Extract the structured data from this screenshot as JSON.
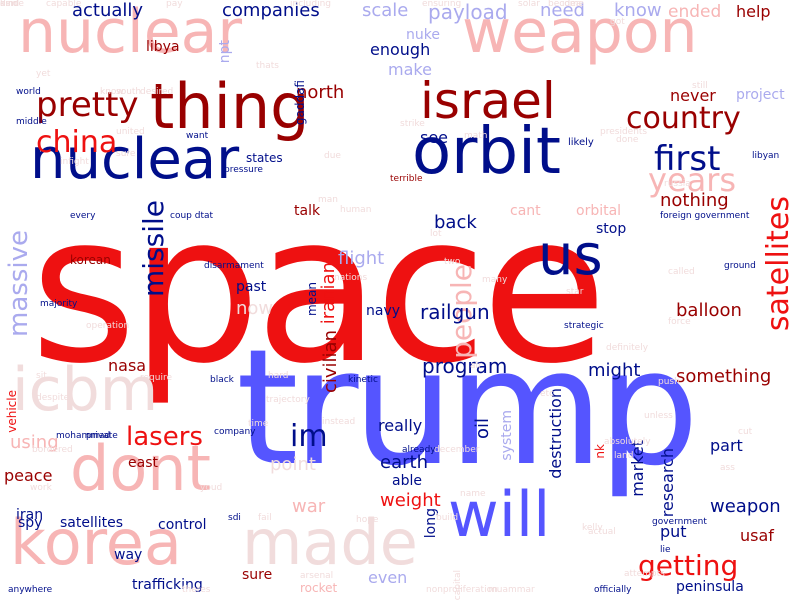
{
  "colors": {
    "red": "#ee1111",
    "dark_red": "#990000",
    "pink": "#f7b5b5",
    "navy": "#000e8a",
    "blue": "#5555ff",
    "light_blue": "#aaaaee",
    "faint": "#f1dcdc"
  },
  "words": [
    {
      "text": "space",
      "color": "red",
      "size": 205
    },
    {
      "text": "trump",
      "color": "blue",
      "size": 160
    },
    {
      "text": "nuclear",
      "color": "pink",
      "size": 60
    },
    {
      "text": "weapon",
      "color": "pink",
      "size": 60
    },
    {
      "text": "orbit",
      "color": "navy",
      "size": 64
    },
    {
      "text": "thing",
      "color": "dark_red",
      "size": 62
    },
    {
      "text": "nuclear",
      "color": "navy",
      "size": 56
    },
    {
      "text": "israel",
      "color": "dark_red",
      "size": 50
    },
    {
      "text": "us",
      "color": "navy",
      "size": 56
    },
    {
      "text": "korea",
      "color": "pink",
      "size": 62
    },
    {
      "text": "dont",
      "color": "pink",
      "size": 62
    },
    {
      "text": "made",
      "color": "faint",
      "size": 62
    },
    {
      "text": "will",
      "color": "blue",
      "size": 62
    },
    {
      "text": "icbm",
      "color": "faint",
      "size": 60
    },
    {
      "text": "pretty",
      "color": "dark_red",
      "size": 34
    },
    {
      "text": "china",
      "color": "red",
      "size": 30
    },
    {
      "text": "country",
      "color": "dark_red",
      "size": 30
    },
    {
      "text": "first",
      "color": "navy",
      "size": 34
    },
    {
      "text": "years",
      "color": "pink",
      "size": 32
    },
    {
      "text": "satellites",
      "color": "red",
      "size": 30
    },
    {
      "text": "massive",
      "color": "light_blue",
      "size": 26
    },
    {
      "text": "missile",
      "color": "navy",
      "size": 28
    },
    {
      "text": "people",
      "color": "pink",
      "size": 28
    },
    {
      "text": "lasers",
      "color": "red",
      "size": 26
    },
    {
      "text": "im",
      "color": "navy",
      "size": 30
    },
    {
      "text": "getting",
      "color": "red",
      "size": 28
    },
    {
      "text": "actually",
      "color": "navy",
      "size": 18
    },
    {
      "text": "companies",
      "color": "navy",
      "size": 18
    },
    {
      "text": "scale",
      "color": "light_blue",
      "size": 18
    },
    {
      "text": "payload",
      "color": "light_blue",
      "size": 20
    },
    {
      "text": "need",
      "color": "light_blue",
      "size": 18
    },
    {
      "text": "know",
      "color": "light_blue",
      "size": 18
    },
    {
      "text": "ended",
      "color": "pink",
      "size": 17
    },
    {
      "text": "help",
      "color": "dark_red",
      "size": 16
    },
    {
      "text": "libya",
      "color": "dark_red",
      "size": 14
    },
    {
      "text": "npt",
      "color": "light_blue",
      "size": 14
    },
    {
      "text": "nuke",
      "color": "light_blue",
      "size": 14
    },
    {
      "text": "never",
      "color": "dark_red",
      "size": 16
    },
    {
      "text": "project",
      "color": "light_blue",
      "size": 14
    },
    {
      "text": "enough",
      "color": "navy",
      "size": 16
    },
    {
      "text": "make",
      "color": "light_blue",
      "size": 16
    },
    {
      "text": "north",
      "color": "dark_red",
      "size": 18
    },
    {
      "text": "gaddafi",
      "color": "navy",
      "size": 12
    },
    {
      "text": "see",
      "color": "navy",
      "size": 16
    },
    {
      "text": "states",
      "color": "navy",
      "size": 12
    },
    {
      "text": "nothing",
      "color": "dark_red",
      "size": 18
    },
    {
      "text": "orbital",
      "color": "pink",
      "size": 14
    },
    {
      "text": "talk",
      "color": "dark_red",
      "size": 14
    },
    {
      "text": "back",
      "color": "navy",
      "size": 18
    },
    {
      "text": "cant",
      "color": "pink",
      "size": 14
    },
    {
      "text": "stop",
      "color": "navy",
      "size": 14
    },
    {
      "text": "flight",
      "color": "light_blue",
      "size": 18
    },
    {
      "text": "mean",
      "color": "navy",
      "size": 12
    },
    {
      "text": "iranian",
      "color": "red",
      "size": 18
    },
    {
      "text": "railgun",
      "color": "navy",
      "size": 20
    },
    {
      "text": "balloon",
      "color": "dark_red",
      "size": 18
    },
    {
      "text": "past",
      "color": "navy",
      "size": 14
    },
    {
      "text": "now",
      "color": "faint",
      "size": 18
    },
    {
      "text": "navy",
      "color": "navy",
      "size": 14
    },
    {
      "text": "nasa",
      "color": "dark_red",
      "size": 16
    },
    {
      "text": "civilian",
      "color": "dark_red",
      "size": 18
    },
    {
      "text": "program",
      "color": "navy",
      "size": 20
    },
    {
      "text": "might",
      "color": "navy",
      "size": 18
    },
    {
      "text": "something",
      "color": "dark_red",
      "size": 18
    },
    {
      "text": "korean",
      "color": "dark_red",
      "size": 12
    },
    {
      "text": "vehicle",
      "color": "red",
      "size": 12
    },
    {
      "text": "using",
      "color": "pink",
      "size": 18
    },
    {
      "text": "east",
      "color": "dark_red",
      "size": 14
    },
    {
      "text": "point",
      "color": "faint",
      "size": 18
    },
    {
      "text": "really",
      "color": "navy",
      "size": 16
    },
    {
      "text": "oil",
      "color": "navy",
      "size": 18
    },
    {
      "text": "earth",
      "color": "navy",
      "size": 18
    },
    {
      "text": "system",
      "color": "light_blue",
      "size": 14
    },
    {
      "text": "destruction",
      "color": "navy",
      "size": 16
    },
    {
      "text": "able",
      "color": "navy",
      "size": 14
    },
    {
      "text": "weight",
      "color": "red",
      "size": 18
    },
    {
      "text": "war",
      "color": "pink",
      "size": 18
    },
    {
      "text": "nk",
      "color": "red",
      "size": 12
    },
    {
      "text": "market",
      "color": "navy",
      "size": 16
    },
    {
      "text": "research",
      "color": "navy",
      "size": 16
    },
    {
      "text": "part",
      "color": "navy",
      "size": 16
    },
    {
      "text": "weapon",
      "color": "navy",
      "size": 18
    },
    {
      "text": "put",
      "color": "navy",
      "size": 16
    },
    {
      "text": "usaf",
      "color": "dark_red",
      "size": 16
    },
    {
      "text": "peace",
      "color": "dark_red",
      "size": 16
    },
    {
      "text": "iran",
      "color": "navy",
      "size": 14
    },
    {
      "text": "spy",
      "color": "navy",
      "size": 14
    },
    {
      "text": "satellites",
      "color": "navy",
      "size": 14
    },
    {
      "text": "control",
      "color": "navy",
      "size": 14
    },
    {
      "text": "way",
      "color": "navy",
      "size": 14
    },
    {
      "text": "sure",
      "color": "dark_red",
      "size": 14
    },
    {
      "text": "even",
      "color": "light_blue",
      "size": 16
    },
    {
      "text": "long",
      "color": "navy",
      "size": 14
    },
    {
      "text": "trafficking",
      "color": "navy",
      "size": 14
    },
    {
      "text": "rocket",
      "color": "pink",
      "size": 12
    },
    {
      "text": "peninsula",
      "color": "navy",
      "size": 14
    },
    {
      "text": "capable",
      "color": "faint",
      "size": 9
    },
    {
      "text": "including",
      "color": "faint",
      "size": 9
    },
    {
      "text": "ensuring",
      "color": "faint",
      "size": 9
    },
    {
      "text": "solar",
      "color": "faint",
      "size": 9
    },
    {
      "text": "become",
      "color": "faint",
      "size": 9
    },
    {
      "text": "world",
      "color": "navy",
      "size": 9
    },
    {
      "text": "south",
      "color": "faint",
      "size": 9
    },
    {
      "text": "desired",
      "color": "faint",
      "size": 9
    },
    {
      "text": "middle",
      "color": "navy",
      "size": 9
    },
    {
      "text": "united",
      "color": "faint",
      "size": 9
    },
    {
      "text": "want",
      "color": "navy",
      "size": 9
    },
    {
      "text": "math",
      "color": "faint",
      "size": 9
    },
    {
      "text": "likely",
      "color": "navy",
      "size": 10
    },
    {
      "text": "terrible",
      "color": "dark_red",
      "size": 9
    },
    {
      "text": "every",
      "color": "navy",
      "size": 9
    },
    {
      "text": "coup dtat",
      "color": "navy",
      "size": 9
    },
    {
      "text": "foreign government",
      "color": "navy",
      "size": 9
    },
    {
      "text": "disarmament",
      "color": "navy",
      "size": 9
    },
    {
      "text": "called",
      "color": "faint",
      "size": 9
    },
    {
      "text": "ground",
      "color": "navy",
      "size": 9
    },
    {
      "text": "many",
      "color": "faint",
      "size": 9
    },
    {
      "text": "star",
      "color": "faint",
      "size": 9
    },
    {
      "text": "force",
      "color": "faint",
      "size": 9
    },
    {
      "text": "operation",
      "color": "faint",
      "size": 9
    },
    {
      "text": "strategic",
      "color": "navy",
      "size": 9
    },
    {
      "text": "definitely",
      "color": "faint",
      "size": 9
    },
    {
      "text": "require",
      "color": "faint",
      "size": 9
    },
    {
      "text": "black",
      "color": "navy",
      "size": 9
    },
    {
      "text": "hard",
      "color": "faint",
      "size": 9
    },
    {
      "text": "kinetic",
      "color": "navy",
      "size": 9
    },
    {
      "text": "push",
      "color": "faint",
      "size": 9
    },
    {
      "text": "trajectory",
      "color": "faint",
      "size": 9
    },
    {
      "text": "instead",
      "color": "faint",
      "size": 9
    },
    {
      "text": "december",
      "color": "faint",
      "size": 9
    },
    {
      "text": "mohammad",
      "color": "navy",
      "size": 9
    },
    {
      "text": "private",
      "color": "navy",
      "size": 9
    },
    {
      "text": "company",
      "color": "navy",
      "size": 9
    },
    {
      "text": "bordered",
      "color": "faint",
      "size": 9
    },
    {
      "text": "already",
      "color": "navy",
      "size": 9
    },
    {
      "text": "absolutely",
      "color": "faint",
      "size": 9
    },
    {
      "text": "land",
      "color": "faint",
      "size": 9
    },
    {
      "text": "ass",
      "color": "faint",
      "size": 9
    },
    {
      "text": "youd",
      "color": "faint",
      "size": 9
    },
    {
      "text": "sdi",
      "color": "navy",
      "size": 9
    },
    {
      "text": "fail",
      "color": "faint",
      "size": 9
    },
    {
      "text": "build",
      "color": "faint",
      "size": 9
    },
    {
      "text": "government",
      "color": "navy",
      "size": 9
    },
    {
      "text": "lie",
      "color": "navy",
      "size": 9
    },
    {
      "text": "actual",
      "color": "faint",
      "size": 9
    },
    {
      "text": "arsenal",
      "color": "faint",
      "size": 9
    },
    {
      "text": "theres",
      "color": "faint",
      "size": 9
    },
    {
      "text": "nonproliferation",
      "color": "faint",
      "size": 9
    },
    {
      "text": "muammar",
      "color": "faint",
      "size": 9
    },
    {
      "text": "officially",
      "color": "navy",
      "size": 9
    },
    {
      "text": "anywhere",
      "color": "navy",
      "size": 9
    },
    {
      "text": "majority",
      "color": "navy",
      "size": 9
    },
    {
      "text": "nations",
      "color": "faint",
      "size": 9
    },
    {
      "text": "capital",
      "color": "faint",
      "size": 9
    },
    {
      "text": "attempts",
      "color": "faint",
      "size": 9
    },
    {
      "text": "russia",
      "color": "faint",
      "size": 9
    },
    {
      "text": "libyan",
      "color": "navy",
      "size": 9
    },
    {
      "text": "still",
      "color": "faint",
      "size": 9
    },
    {
      "text": "done",
      "color": "faint",
      "size": 9
    },
    {
      "text": "presidents",
      "color": "faint",
      "size": 9
    },
    {
      "text": "strike",
      "color": "faint",
      "size": 9
    },
    {
      "text": "two",
      "color": "faint",
      "size": 9
    },
    {
      "text": "air",
      "color": "faint",
      "size": 9
    },
    {
      "text": "human",
      "color": "faint",
      "size": 9
    },
    {
      "text": "pressure",
      "color": "navy",
      "size": 9
    },
    {
      "text": "man",
      "color": "faint",
      "size": 9
    },
    {
      "text": "unless",
      "color": "faint",
      "size": 9
    },
    {
      "text": "kelly",
      "color": "faint",
      "size": 9
    },
    {
      "text": "etc",
      "color": "faint",
      "size": 9
    },
    {
      "text": "sit",
      "color": "faint",
      "size": 9
    },
    {
      "text": "despite",
      "color": "faint",
      "size": 9
    },
    {
      "text": "infight",
      "color": "faint",
      "size": 9
    },
    {
      "text": "yet",
      "color": "faint",
      "size": 9
    },
    {
      "text": "work",
      "color": "faint",
      "size": 9
    },
    {
      "text": "cut",
      "color": "faint",
      "size": 9
    },
    {
      "text": "time",
      "color": "faint",
      "size": 9
    },
    {
      "text": "pay",
      "color": "faint",
      "size": 9
    },
    {
      "text": "idea",
      "color": "faint",
      "size": 9
    },
    {
      "text": "know",
      "color": "faint",
      "size": 9
    },
    {
      "text": "thats",
      "color": "faint",
      "size": 9
    },
    {
      "text": "due",
      "color": "faint",
      "size": 9
    },
    {
      "text": "name",
      "color": "faint",
      "size": 9
    },
    {
      "text": "hope",
      "color": "faint",
      "size": 9
    },
    {
      "text": "got",
      "color": "faint",
      "size": 9
    },
    {
      "text": "lot",
      "color": "faint",
      "size": 9
    },
    {
      "text": "sure",
      "color": "faint",
      "size": 9
    },
    {
      "text": "aside",
      "color": "faint",
      "size": 9
    },
    {
      "text": "dim",
      "color": "faint",
      "size": 9
    },
    {
      "text": "kind",
      "color": "faint",
      "size": 9
    }
  ]
}
